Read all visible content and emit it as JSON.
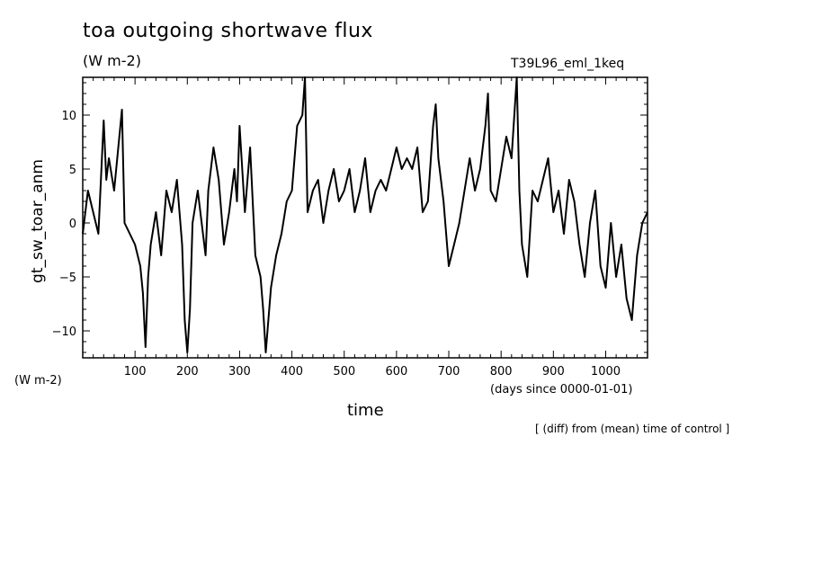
{
  "chart_data": {
    "type": "line",
    "title": "toa outgoing shortwave flux",
    "units": "(W m-2)",
    "run_label": "T39L96_eml_1keq",
    "ylabel": "gt_sw_toar_anm",
    "y_units": "(W m-2)",
    "xlabel": "time",
    "x_units": "(days since 0000-01-01)",
    "note": "[ (diff) from (mean) time of control ]",
    "xlim": [
      0,
      1080
    ],
    "ylim": [
      -12.5,
      13.5
    ],
    "x_ticks": [
      100,
      200,
      300,
      400,
      500,
      600,
      700,
      800,
      900,
      1000
    ],
    "y_ticks": [
      -10,
      -5,
      0,
      5,
      10
    ],
    "grid": false,
    "series": [
      {
        "x": [
          0,
          10,
          20,
          30,
          40,
          45,
          50,
          60,
          70,
          75,
          80,
          90,
          100,
          110,
          115,
          120,
          125,
          130,
          140,
          150,
          160,
          170,
          180,
          190,
          195,
          200,
          205,
          210,
          220,
          230,
          235,
          240,
          250,
          260,
          270,
          280,
          290,
          295,
          300,
          310,
          320,
          330,
          340,
          345,
          350,
          360,
          370,
          380,
          390,
          400,
          410,
          420,
          425,
          430,
          440,
          450,
          460,
          470,
          480,
          490,
          500,
          510,
          520,
          530,
          540,
          550,
          560,
          570,
          580,
          590,
          600,
          610,
          620,
          630,
          640,
          650,
          660,
          670,
          675,
          680,
          690,
          700,
          710,
          720,
          730,
          740,
          750,
          760,
          770,
          775,
          780,
          790,
          800,
          810,
          820,
          830,
          835,
          840,
          850,
          860,
          870,
          880,
          890,
          900,
          910,
          920,
          930,
          940,
          950,
          960,
          970,
          980,
          990,
          1000,
          1010,
          1020,
          1030,
          1040,
          1050,
          1060,
          1070,
          1080
        ],
        "values": [
          -1,
          3,
          1,
          -1,
          9.5,
          4,
          6,
          3,
          8,
          10.5,
          0,
          -1,
          -2,
          -4,
          -6.5,
          -11.5,
          -5,
          -2,
          1,
          -3,
          3,
          1,
          4,
          -2,
          -9,
          -12,
          -8,
          0,
          3,
          -1,
          -3,
          3,
          7,
          4,
          -2,
          1,
          5,
          2,
          9,
          1,
          7,
          -3,
          -5,
          -8,
          -12,
          -6,
          -3,
          -1,
          2,
          3,
          9,
          10,
          13.5,
          1,
          3,
          4,
          0,
          3,
          5,
          2,
          3,
          5,
          1,
          3,
          6,
          1,
          3,
          4,
          3,
          5,
          7,
          5,
          6,
          5,
          7,
          1,
          2,
          9,
          11,
          6,
          2,
          -4,
          -2,
          0,
          3,
          6,
          3,
          5,
          9,
          12,
          3,
          2,
          5,
          8,
          6,
          13.5,
          3,
          -2,
          -5,
          3,
          2,
          4,
          6,
          1,
          3,
          -1,
          4,
          2,
          -2,
          -5,
          0,
          3,
          -4,
          -6,
          0,
          -5,
          -2,
          -7,
          -9,
          -3,
          0,
          1
        ]
      }
    ]
  }
}
